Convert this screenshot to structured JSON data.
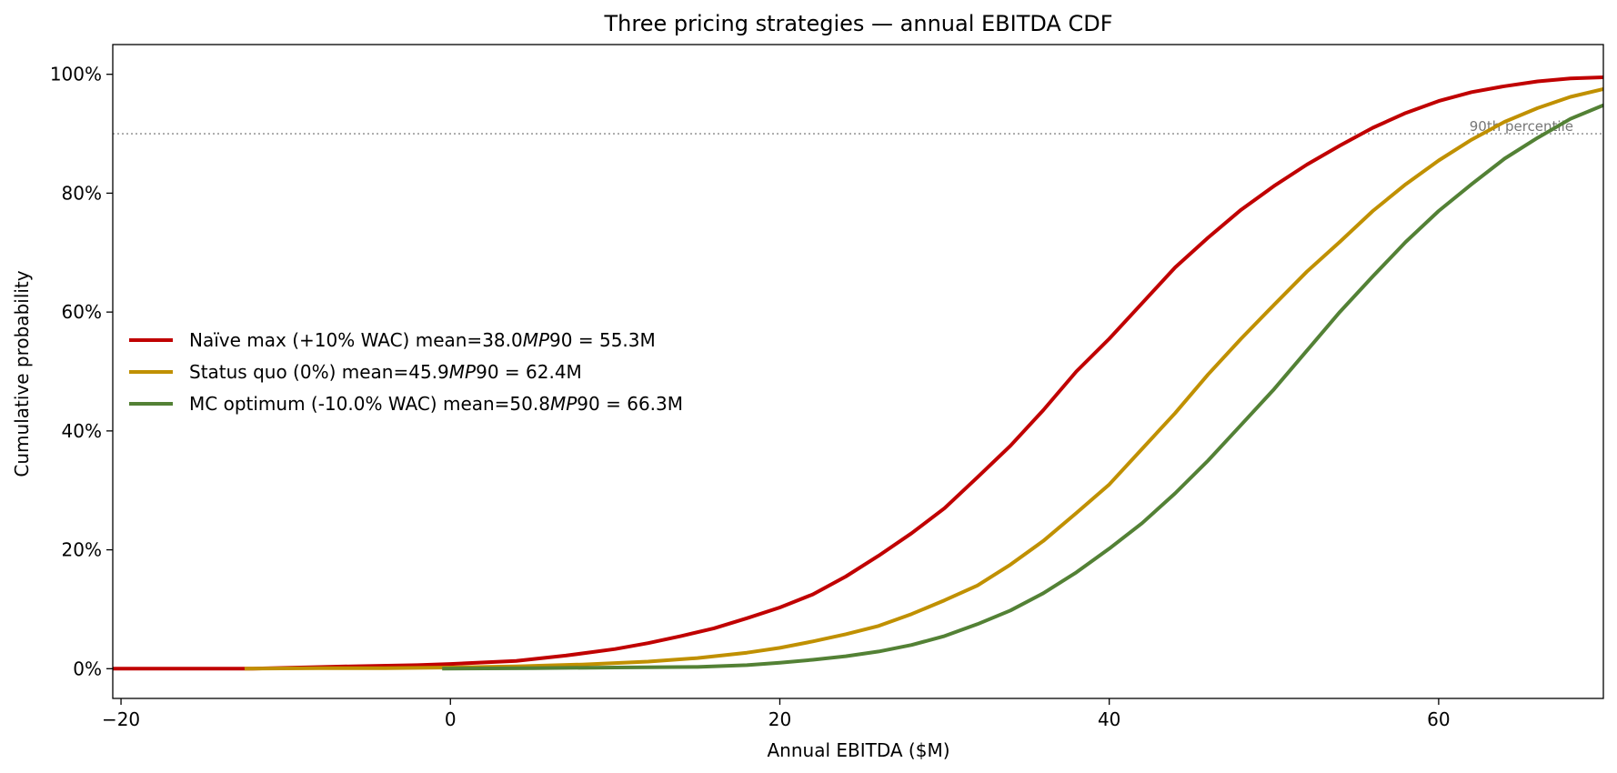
{
  "chart_data": {
    "type": "line",
    "title": "Three pricing strategies — annual EBITDA CDF",
    "xlabel": "Annual EBITDA  ($M)",
    "ylabel": "Cumulative probability",
    "xlim": [
      -20.5,
      70
    ],
    "ylim": [
      -0.05,
      1.05
    ],
    "x_ticks": [
      -20,
      0,
      20,
      40,
      60
    ],
    "x_tick_labels": [
      "−20",
      "0",
      "20",
      "40",
      "60"
    ],
    "y_ticks": [
      0,
      0.2,
      0.4,
      0.6,
      0.8,
      1.0
    ],
    "y_tick_labels": [
      "0%",
      "20%",
      "40%",
      "60%",
      "80%",
      "100%"
    ],
    "grid": false,
    "legend_position": "center-left",
    "reference_line": {
      "y": 0.9,
      "label": "90th percentile",
      "color": "#888888"
    },
    "series": [
      {
        "name": "Naïve max  (+10% WAC)   mean=38.0$M P90 = 55.3M",
        "legend_parts": [
          "Naïve max  (+10% WAC)   mean=38.0",
          "MP",
          "90 = 55.3M"
        ],
        "color": "#c00000",
        "points": [
          [
            -20.5,
            0
          ],
          [
            -12,
            0
          ],
          [
            -6,
            0.004
          ],
          [
            -2,
            0.006
          ],
          [
            0,
            0.008
          ],
          [
            4,
            0.013
          ],
          [
            7,
            0.022
          ],
          [
            10,
            0.033
          ],
          [
            12,
            0.043
          ],
          [
            14,
            0.055
          ],
          [
            16,
            0.068
          ],
          [
            18,
            0.085
          ],
          [
            20,
            0.103
          ],
          [
            22,
            0.125
          ],
          [
            24,
            0.155
          ],
          [
            26,
            0.19
          ],
          [
            28,
            0.228
          ],
          [
            30,
            0.27
          ],
          [
            32,
            0.322
          ],
          [
            34,
            0.375
          ],
          [
            36,
            0.435
          ],
          [
            38,
            0.5
          ],
          [
            40,
            0.555
          ],
          [
            42,
            0.615
          ],
          [
            44,
            0.675
          ],
          [
            46,
            0.725
          ],
          [
            48,
            0.772
          ],
          [
            50,
            0.812
          ],
          [
            52,
            0.848
          ],
          [
            54,
            0.88
          ],
          [
            56,
            0.91
          ],
          [
            58,
            0.935
          ],
          [
            60,
            0.955
          ],
          [
            62,
            0.97
          ],
          [
            64,
            0.98
          ],
          [
            66,
            0.988
          ],
          [
            68,
            0.993
          ],
          [
            70,
            0.995
          ]
        ]
      },
      {
        "name": "Status quo  (0%)   mean=45.9$M P90 = 62.4M",
        "legend_parts": [
          "Status quo  (0%)   mean=45.9",
          "MP",
          "90 = 62.4M"
        ],
        "color": "#c09000",
        "points": [
          [
            -12.5,
            0
          ],
          [
            -8,
            0.001
          ],
          [
            -4,
            0.001
          ],
          [
            0,
            0.002
          ],
          [
            4,
            0.004
          ],
          [
            8,
            0.007
          ],
          [
            12,
            0.012
          ],
          [
            15,
            0.018
          ],
          [
            18,
            0.027
          ],
          [
            20,
            0.035
          ],
          [
            22,
            0.046
          ],
          [
            24,
            0.058
          ],
          [
            26,
            0.072
          ],
          [
            28,
            0.092
          ],
          [
            30,
            0.115
          ],
          [
            32,
            0.14
          ],
          [
            34,
            0.175
          ],
          [
            36,
            0.215
          ],
          [
            38,
            0.262
          ],
          [
            40,
            0.31
          ],
          [
            42,
            0.37
          ],
          [
            44,
            0.43
          ],
          [
            46,
            0.495
          ],
          [
            48,
            0.555
          ],
          [
            50,
            0.612
          ],
          [
            52,
            0.668
          ],
          [
            54,
            0.718
          ],
          [
            56,
            0.77
          ],
          [
            58,
            0.815
          ],
          [
            60,
            0.855
          ],
          [
            62,
            0.89
          ],
          [
            64,
            0.92
          ],
          [
            66,
            0.943
          ],
          [
            68,
            0.962
          ],
          [
            70,
            0.975
          ]
        ]
      },
      {
        "name": "MC optimum  (-10.0% WAC)   mean=50.8$M P90 = 66.3M",
        "legend_parts": [
          "MC optimum  (-10.0% WAC)   mean=50.8",
          "MP",
          "90 = 66.3M"
        ],
        "color": "#538135",
        "points": [
          [
            -0.5,
            0
          ],
          [
            5,
            0.001
          ],
          [
            10,
            0.002
          ],
          [
            15,
            0.003
          ],
          [
            18,
            0.006
          ],
          [
            20,
            0.01
          ],
          [
            22,
            0.015
          ],
          [
            24,
            0.021
          ],
          [
            26,
            0.029
          ],
          [
            28,
            0.04
          ],
          [
            30,
            0.055
          ],
          [
            32,
            0.075
          ],
          [
            34,
            0.098
          ],
          [
            36,
            0.127
          ],
          [
            38,
            0.162
          ],
          [
            40,
            0.202
          ],
          [
            42,
            0.245
          ],
          [
            44,
            0.295
          ],
          [
            46,
            0.35
          ],
          [
            48,
            0.41
          ],
          [
            50,
            0.47
          ],
          [
            52,
            0.535
          ],
          [
            54,
            0.6
          ],
          [
            56,
            0.66
          ],
          [
            58,
            0.718
          ],
          [
            60,
            0.77
          ],
          [
            62,
            0.815
          ],
          [
            64,
            0.858
          ],
          [
            66,
            0.893
          ],
          [
            68,
            0.925
          ],
          [
            70,
            0.948
          ]
        ]
      }
    ]
  }
}
